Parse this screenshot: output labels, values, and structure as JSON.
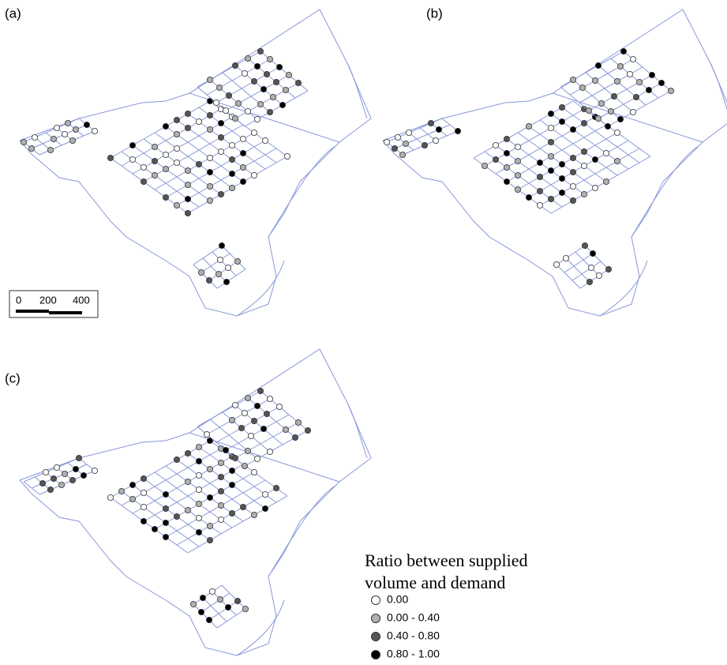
{
  "panels": [
    {
      "label": "(a)"
    },
    {
      "label": "(b)"
    },
    {
      "label": "(c)"
    }
  ],
  "scale_bar": {
    "labels": [
      "0",
      "200",
      "400"
    ]
  },
  "legend": {
    "title_lines": [
      "Ratio between supplied",
      "volume and demand"
    ],
    "items": [
      {
        "label": "0.00",
        "color": "#ffffff"
      },
      {
        "label": "0.00 - 0.40",
        "color": "#b0b0b0"
      },
      {
        "label": "0.40 - 0.80",
        "color": "#555555"
      },
      {
        "label": "0.80 - 1.00",
        "color": "#000000"
      }
    ]
  }
}
